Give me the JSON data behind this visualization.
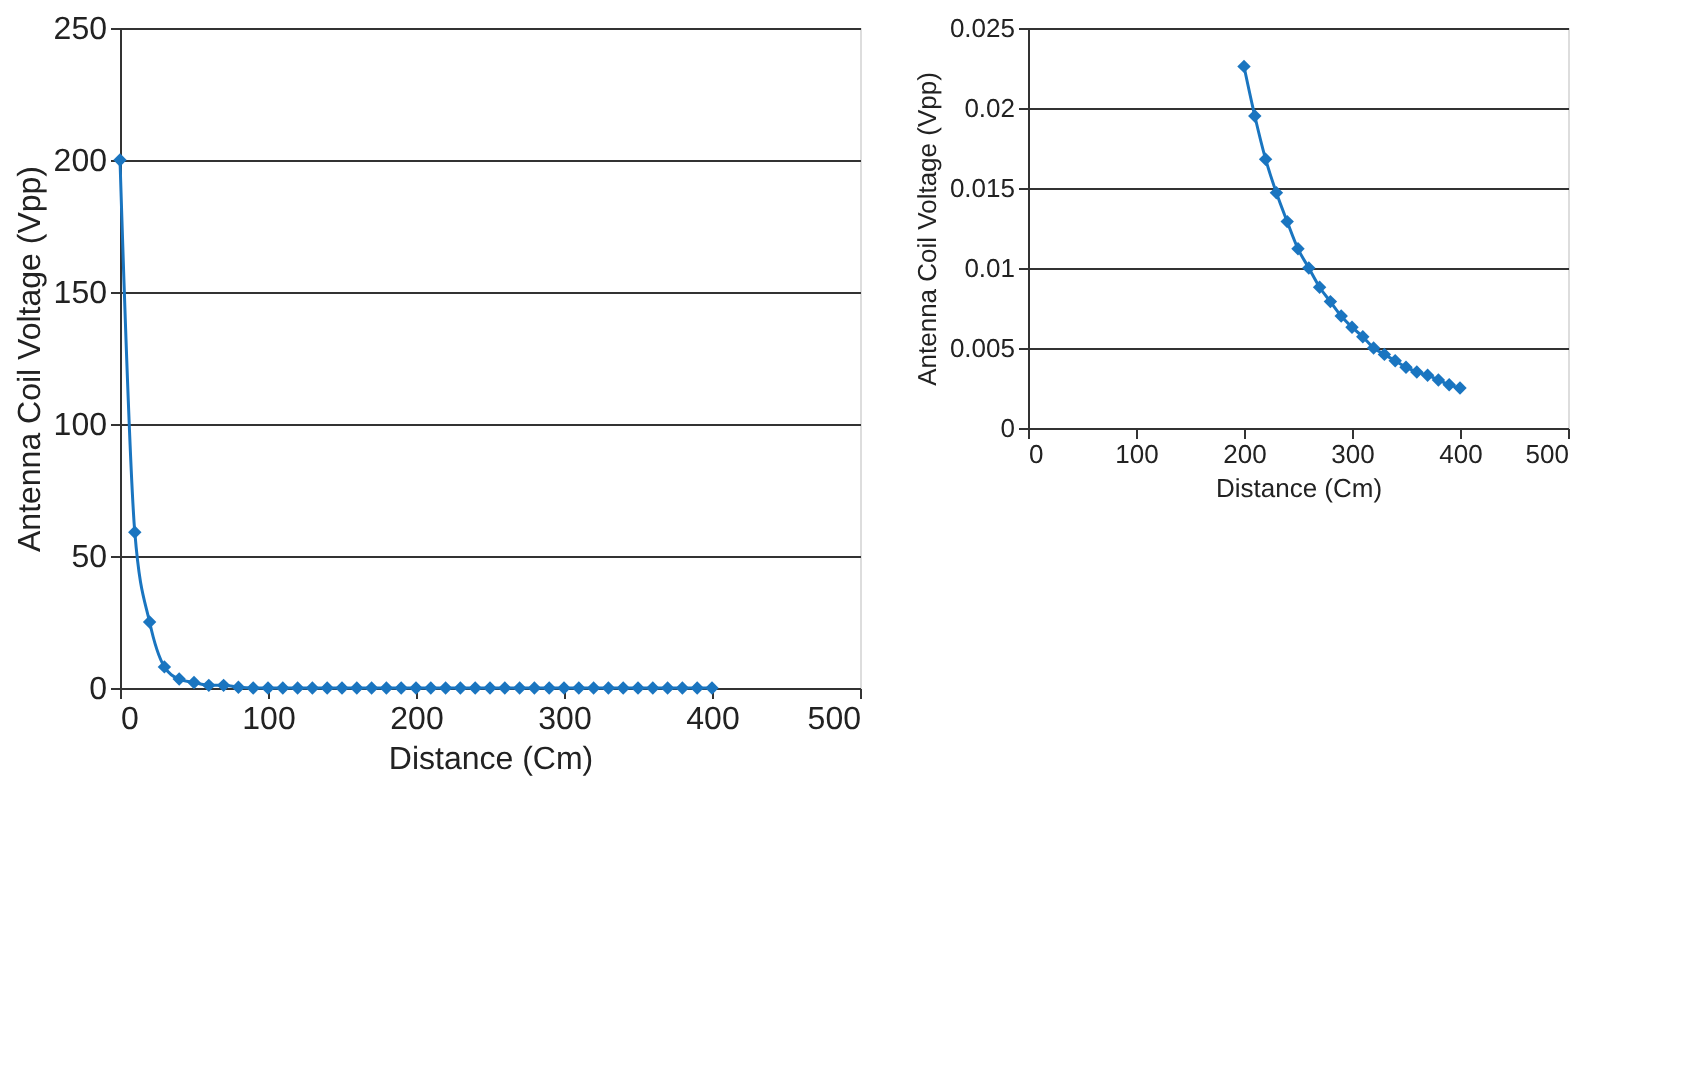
{
  "chart_data": [
    {
      "type": "line",
      "xlabel": "Distance (Cm)",
      "ylabel": "Antenna Coil Voltage (Vpp)",
      "x": [
        0,
        10,
        20,
        30,
        40,
        50,
        60,
        70,
        80,
        90,
        100,
        110,
        120,
        130,
        140,
        150,
        160,
        170,
        180,
        190,
        200,
        210,
        220,
        230,
        240,
        250,
        260,
        270,
        280,
        290,
        300,
        310,
        320,
        330,
        340,
        350,
        360,
        370,
        380,
        390,
        400
      ],
      "series": [
        {
          "color": "#1a75c0",
          "values": [
            200,
            59,
            25,
            8,
            3.4,
            2.1,
            1,
            1,
            0.3,
            0,
            0,
            0,
            0,
            0,
            0,
            0,
            0,
            0,
            0,
            0,
            0,
            0,
            0,
            0,
            0,
            0,
            0,
            0,
            0,
            0,
            0,
            0,
            0,
            0,
            0,
            0,
            0,
            0,
            0,
            0,
            0
          ]
        }
      ],
      "xlim": [
        0,
        500
      ],
      "xticks": [
        0,
        100,
        200,
        300,
        400,
        500
      ],
      "ylim": [
        0,
        250
      ],
      "yticks": [
        0,
        50,
        100,
        150,
        200,
        250
      ],
      "grid": "y",
      "marker": "diamond",
      "line_style": "solid"
    },
    {
      "type": "line",
      "xlabel": "Distance (Cm)",
      "ylabel": "Antenna Coil Voltage (Vpp)",
      "x": [
        200,
        210,
        220,
        230,
        240,
        250,
        260,
        270,
        280,
        290,
        300,
        310,
        320,
        330,
        340,
        350,
        360,
        370,
        380,
        390,
        400
      ],
      "series": [
        {
          "color": "#1a75c0",
          "values": [
            0.0226,
            0.0195,
            0.0168,
            0.0147,
            0.0129,
            0.0112,
            0.01,
            0.0088,
            0.0079,
            0.007,
            0.0063,
            0.0057,
            0.005,
            0.0046,
            0.0042,
            0.0038,
            0.0035,
            0.0033,
            0.003,
            0.0027,
            0.0025
          ]
        }
      ],
      "xlim": [
        0,
        500
      ],
      "xticks": [
        0,
        100,
        200,
        300,
        400,
        500
      ],
      "ylim": [
        0,
        0.025
      ],
      "yticks": [
        0,
        0.005,
        0.01,
        0.015,
        0.02,
        0.025
      ],
      "grid": "y",
      "marker": "diamond",
      "line_style": "solid"
    }
  ]
}
